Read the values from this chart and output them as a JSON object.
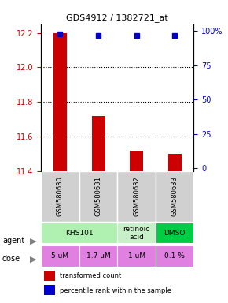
{
  "title": "GDS4912 / 1382721_at",
  "samples": [
    "GSM580630",
    "GSM580631",
    "GSM580632",
    "GSM580633"
  ],
  "bar_values": [
    12.2,
    11.72,
    11.52,
    11.5
  ],
  "bar_baseline": 11.4,
  "percentile_values": [
    98,
    97,
    97,
    97
  ],
  "percentile_baseline": 100,
  "ylim": [
    11.4,
    12.25
  ],
  "yticks_left": [
    11.4,
    11.6,
    11.8,
    12.0,
    12.2
  ],
  "yticks_right": [
    0,
    25,
    50,
    75,
    100
  ],
  "grid_values": [
    12.0,
    11.8,
    11.6
  ],
  "agents": [
    [
      "KHS101",
      2
    ],
    [
      "retinoic\nacid",
      1
    ],
    [
      "DMSO",
      1
    ]
  ],
  "agent_colors": [
    "#b0f0b0",
    "#c8f0c8",
    "#00cc44"
  ],
  "doses": [
    "5 uM",
    "1.7 uM",
    "1 uM",
    "0.1 %"
  ],
  "dose_color": "#e080e0",
  "bar_color": "#cc0000",
  "dot_color": "#0000cc",
  "sample_bg": "#d0d0d0",
  "legend_bar_color": "#cc0000",
  "legend_dot_color": "#0000cc"
}
